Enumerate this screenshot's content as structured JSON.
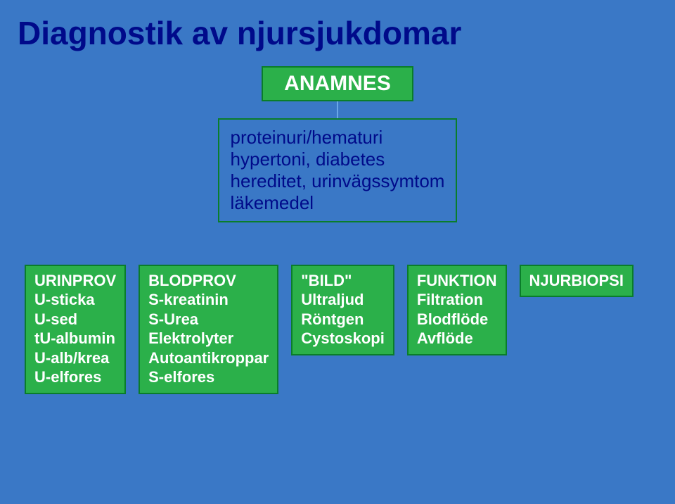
{
  "colors": {
    "bg": "#3a78c6",
    "title": "#000a8a",
    "green": "#2bb04a",
    "green_border": "#0a7d2a",
    "mid_border": "#0a7d2a",
    "mid_text": "#000a8a",
    "connector": "#6aa7e6",
    "box_text": "#ffffff"
  },
  "fonts": {
    "title_size": 46,
    "anamnes_size": 30,
    "mid_size": 26,
    "col_size": 22
  },
  "layout": {
    "anamnes_padding": "6px 30px",
    "connector_height": 24,
    "mid_min_width": 340,
    "row_gap": 18
  },
  "title": "Diagnostik av njursjukdomar",
  "anamnes": "ANAMNES",
  "mid": {
    "lines": [
      "proteinuri/hematuri",
      "hypertoni, diabetes",
      "hereditet, urinvägssymtom",
      "läkemedel"
    ]
  },
  "columns": [
    {
      "title": "URINPROV",
      "lines": [
        "U-sticka",
        "U-sed",
        "tU-albumin",
        "U-alb/krea",
        "U-elfores"
      ]
    },
    {
      "title": "BLODPROV",
      "lines": [
        "S-kreatinin",
        "S-Urea",
        "Elektrolyter",
        "Autoantikroppar",
        "S-elfores"
      ]
    },
    {
      "title": "\"BILD\"",
      "lines": [
        "Ultraljud",
        "Röntgen",
        "Cystoskopi"
      ]
    },
    {
      "title": "FUNKTION",
      "lines": [
        "Filtration",
        "Blodflöde",
        "Avflöde"
      ]
    },
    {
      "title": "NJURBIOPSI",
      "lines": []
    }
  ]
}
